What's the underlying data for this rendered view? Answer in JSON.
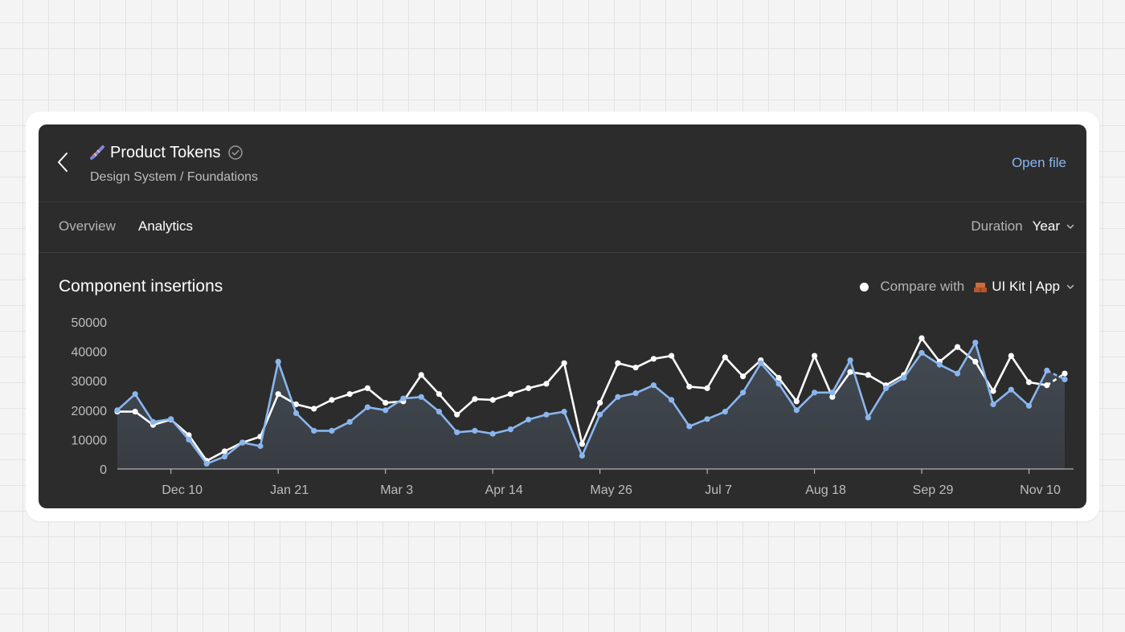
{
  "header": {
    "title": "Product Tokens",
    "breadcrumb": "Design System / Foundations",
    "open_file": "Open file",
    "title_icon": "dna-emoji-icon"
  },
  "tabs": [
    {
      "label": "Overview",
      "active": false
    },
    {
      "label": "Analytics",
      "active": true
    }
  ],
  "duration": {
    "label": "Duration",
    "value": "Year"
  },
  "chart_title": "Component insertions",
  "compare": {
    "label": "Compare with",
    "value": "UI Kit | App",
    "icon": "bricks-emoji-icon"
  },
  "colors": {
    "primary": "#8ab6ee",
    "compare": "#ffffff",
    "panel": "#2c2c2c"
  },
  "chart_data": {
    "type": "line",
    "title": "Component insertions",
    "ylim": [
      0,
      50000
    ],
    "yticks": [
      0,
      10000,
      20000,
      30000,
      40000,
      50000
    ],
    "xticks": [
      "Dec 10",
      "Jan 21",
      "Mar 3",
      "Apr 14",
      "May 26",
      "Jul 7",
      "Aug 18",
      "Sep 29",
      "Nov 10"
    ],
    "grid": false,
    "series": [
      {
        "name": "Product Tokens",
        "color": "#8ab6ee",
        "values": [
          20000,
          25500,
          16000,
          17000,
          10000,
          1800,
          4200,
          9000,
          7800,
          36500,
          19000,
          13000,
          13000,
          16000,
          21000,
          20000,
          24000,
          24500,
          19500,
          12500,
          13000,
          12000,
          13500,
          16800,
          18500,
          19500,
          4500,
          18500,
          24500,
          25800,
          28500,
          23500,
          14500,
          17000,
          19500,
          26000,
          36000,
          29000,
          20000,
          26000,
          26000,
          37000,
          17500,
          27500,
          31000,
          39500,
          35500,
          32500,
          43000,
          22000,
          27000,
          21500,
          33500,
          30500
        ],
        "dashed_tail": 1
      },
      {
        "name": "UI Kit | App",
        "color": "#ffffff",
        "values": [
          19500,
          19500,
          15000,
          16800,
          11500,
          2800,
          6000,
          9000,
          11000,
          25500,
          22000,
          20500,
          23500,
          25500,
          27500,
          22500,
          23000,
          32000,
          25500,
          18500,
          23800,
          23500,
          25500,
          27500,
          29000,
          36000,
          8500,
          22500,
          36000,
          34500,
          37500,
          38500,
          28000,
          27500,
          38000,
          31500,
          37000,
          31000,
          23000,
          38500,
          24500,
          33000,
          32000,
          28500,
          32000,
          44500,
          36500,
          41500,
          36500,
          26500,
          38500,
          29500,
          28500,
          32500
        ],
        "dashed_tail": 1
      }
    ]
  }
}
